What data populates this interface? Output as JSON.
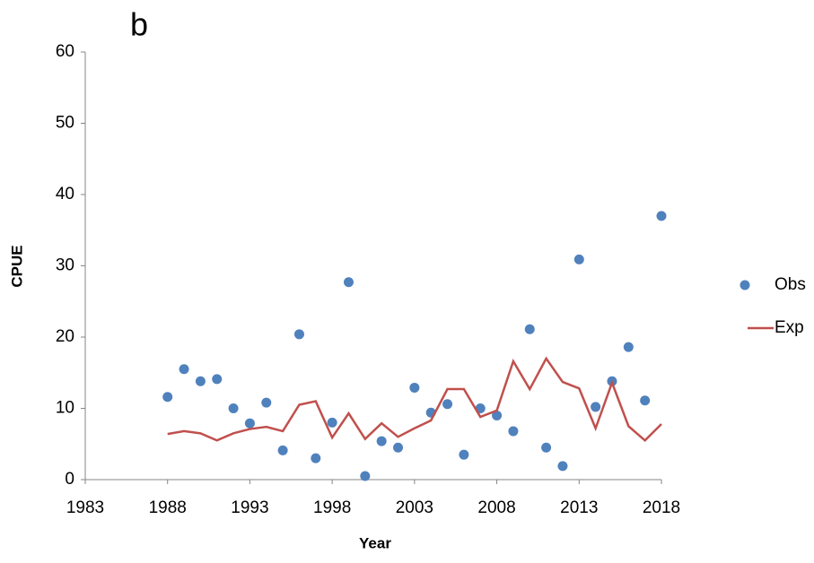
{
  "chart_data": {
    "type": "combo",
    "title": "b",
    "xlabel": "Year",
    "ylabel": "CPUE",
    "x": [
      1988,
      1989,
      1990,
      1991,
      1992,
      1993,
      1994,
      1995,
      1996,
      1997,
      1998,
      1999,
      2000,
      2001,
      2002,
      2003,
      2004,
      2005,
      2006,
      2007,
      2008,
      2009,
      2010,
      2011,
      2012,
      2013,
      2014,
      2015,
      2016,
      2017,
      2018
    ],
    "series": [
      {
        "name": "Obs",
        "type": "scatter",
        "color": "#4f81bd",
        "values": [
          11.6,
          15.5,
          13.8,
          14.1,
          10.0,
          7.9,
          10.8,
          4.1,
          20.4,
          3.0,
          8.0,
          27.7,
          0.5,
          5.4,
          4.5,
          12.9,
          9.4,
          10.6,
          3.5,
          10.0,
          9.0,
          6.8,
          21.1,
          4.5,
          1.9,
          30.9,
          10.2,
          13.8,
          18.6,
          11.1,
          37.0
        ]
      },
      {
        "name": "Exp",
        "type": "line",
        "color": "#c0504d",
        "values": [
          6.4,
          6.8,
          6.5,
          5.5,
          6.5,
          7.1,
          7.4,
          6.8,
          10.5,
          11.0,
          5.9,
          9.3,
          5.7,
          7.9,
          6.0,
          7.2,
          8.3,
          12.7,
          12.7,
          8.8,
          9.7,
          16.6,
          12.7,
          17.0,
          13.7,
          12.8,
          7.2,
          13.6,
          7.5,
          5.5,
          7.8
        ]
      }
    ],
    "xlim": [
      1983,
      2018
    ],
    "xticks": [
      1983,
      1988,
      1993,
      1998,
      2003,
      2008,
      2013,
      2018
    ],
    "ylim": [
      0,
      60
    ],
    "yticks": [
      0,
      10,
      20,
      30,
      40,
      50,
      60
    ],
    "grid": false,
    "legend": "right"
  }
}
